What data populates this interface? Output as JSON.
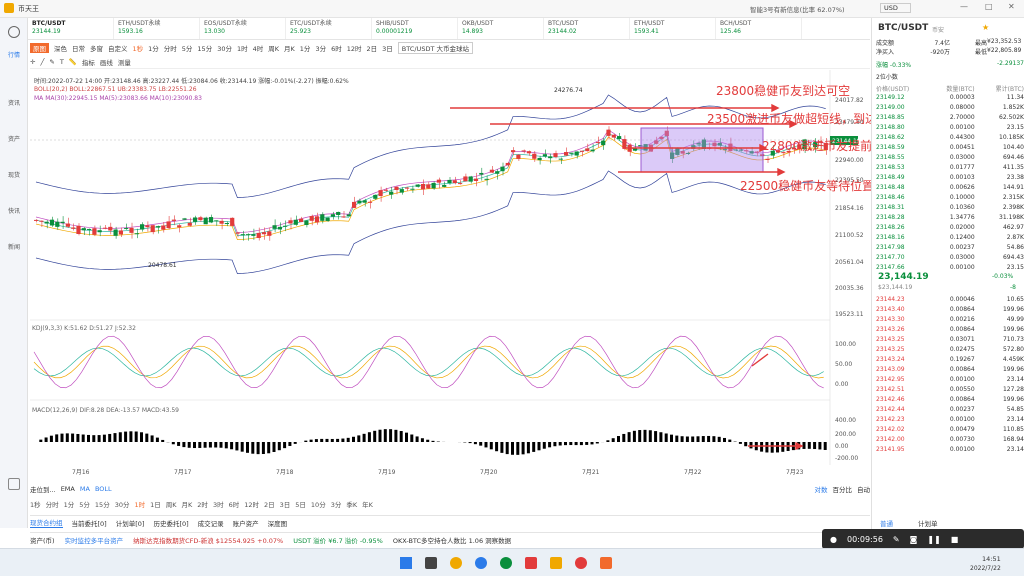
{
  "app": {
    "title": "币天王",
    "right_info": "智能3号有新信息(比率 62.07%)",
    "currency": "USD"
  },
  "tabs": [
    {
      "name": "BTC/USDT",
      "price": "23144.19"
    },
    {
      "name": "ETH/USDT永续",
      "price": "1593.16"
    },
    {
      "name": "EOS/USDT永续",
      "price": "13.030"
    },
    {
      "name": "ETC/USDT永续",
      "price": "25.923"
    },
    {
      "name": "SHIB/USDT",
      "price": "0.00001219"
    },
    {
      "name": "OKB/USDT",
      "price": "14.893"
    },
    {
      "name": "BTC/USDT",
      "price": "23144.02"
    },
    {
      "name": "ETH/USDT",
      "price": "1593.41"
    },
    {
      "name": "BCH/USDT",
      "price": "125.46"
    }
  ],
  "leftnav": [
    "行情",
    "资讯",
    "资产",
    "现货",
    "快讯",
    "新闻"
  ],
  "toolbar1": [
    "原图",
    "深色",
    "日常",
    "多窗",
    "自定义",
    "1秒",
    "1分",
    "分时",
    "5分",
    "15分",
    "30分",
    "1时",
    "4时",
    "周K",
    "月K",
    "1分",
    "3分",
    "6时",
    "12时",
    "2日",
    "3日",
    "BTC/USDT 大币金球站"
  ],
  "toolbar2": [
    "指标",
    "画线",
    "测量"
  ],
  "info": {
    "line1": "时间:2022-07-22 14:00  开:23148.46  高:23227.44  低:23084.06  收:23144.19  涨幅:-0.01%(-2.27)  振幅:0.62%",
    "line2": "BOLL(20,2)  BOLL:22867.51  UB:23383.75  LB:22551.26",
    "line3": "MA  MA(30):22945.15  MA(5):23083.66  MA(10):23090.83"
  },
  "annotations": {
    "a1": "23800稳健币友到达可空",
    "a2": "23500激进币友做超短线，到达空一次",
    "a3": "22800激进币友提前进场",
    "a4": "22500稳健币友等待位置"
  },
  "chart_data": {
    "type": "candlestick",
    "price_axis": [
      "24017.82",
      "23479.80",
      "22940.00",
      "22395.50",
      "21854.16",
      "21100.52",
      "20561.04",
      "20035.36",
      "19523.11"
    ],
    "high_label": "24276.74",
    "low_label": "20478.61",
    "current": "23144.19",
    "x_labels": [
      "7月16",
      "7月17",
      "7月18",
      "7月19",
      "7月20",
      "7月21",
      "7月22",
      "7月23"
    ],
    "kdj_label": "KDJ(9,3,3)  K:51.62  D:51.27  J:52.32",
    "kdj_axis": [
      "100.00",
      "50.00",
      "0.00"
    ],
    "macd_label": "MACD(12,26,9)  DIF:8.28  DEA:-13.57  MACD:43.59",
    "macd_axis": [
      "400.00",
      "200.00",
      "0.00",
      "-200.00"
    ]
  },
  "toolbar3": [
    "走位到...",
    "EMA",
    "MA",
    "BOLL"
  ],
  "toolbar3_right": [
    "对数",
    "百分比",
    "自动"
  ],
  "toolbar4": [
    "1秒",
    "分时",
    "1分",
    "5分",
    "15分",
    "30分",
    "1时",
    "1日",
    "周K",
    "月K",
    "2时",
    "3时",
    "6时",
    "12时",
    "2日",
    "3日",
    "5日",
    "10分",
    "3分",
    "季K",
    "年K"
  ],
  "bottom_tabs": [
    "现货合约组",
    "当前委托[0]",
    "计划单[0]",
    "历史委托[0]",
    "成交记录",
    "账户资产",
    "深度图"
  ],
  "ticker": {
    "t1": "资产(币)",
    "t2": "实时监控多平台资产",
    "t3": "纳斯达克指数期货CFD-新浪 $12554.925 +0.07%",
    "t4": "USDT 溢价 ¥6.7 溢价 -0.95%",
    "t5": "OKX-BTC多空持仓人数比 1.06 洞察数据"
  },
  "right": {
    "pair": "BTC/USDT",
    "sub": "币安",
    "stats": [
      [
        "成交额",
        "7.4亿",
        "最高",
        "¥23,352.53"
      ],
      [
        "净买入",
        "-920万",
        "最低",
        "¥22,805.89"
      ]
    ],
    "change": "涨幅 -0.33%",
    "changeval": "-2.29137",
    "precision": "2位小数",
    "headers": [
      "价格(USDT)",
      "数量(BTC)",
      "累计(BTC)"
    ],
    "asks": [
      [
        "23149.12",
        "0.00003",
        "11.34"
      ],
      [
        "23149.00",
        "0.08000",
        "1.852K"
      ],
      [
        "23148.85",
        "2.70000",
        "62.502K"
      ],
      [
        "23148.80",
        "0.00100",
        "23.15"
      ],
      [
        "23148.62",
        "0.44300",
        "10.185K"
      ],
      [
        "23148.59",
        "0.00451",
        "104.40"
      ],
      [
        "23148.55",
        "0.03000",
        "694.46"
      ],
      [
        "23148.53",
        "0.01777",
        "411.35"
      ],
      [
        "23148.49",
        "0.00103",
        "23.38"
      ],
      [
        "23148.48",
        "0.00626",
        "144.91"
      ],
      [
        "23148.46",
        "0.10000",
        "2.315K"
      ],
      [
        "23148.31",
        "0.10360",
        "2.398K"
      ],
      [
        "23148.28",
        "1.34776",
        "31.198K"
      ],
      [
        "23148.26",
        "0.02000",
        "462.97"
      ],
      [
        "23148.16",
        "0.12400",
        "2.87K"
      ],
      [
        "23147.98",
        "0.00237",
        "54.86"
      ],
      [
        "23147.70",
        "0.03000",
        "694.43"
      ],
      [
        "23147.66",
        "0.00100",
        "23.15"
      ]
    ],
    "last": "23,144.19",
    "last_pct": "-0.03%",
    "last_sub": "$23,144.19",
    "last_chg": "-8",
    "bids": [
      [
        "23144.23",
        "0.00046",
        "10.65"
      ],
      [
        "23143.40",
        "0.00864",
        "199.96"
      ],
      [
        "23143.30",
        "0.00216",
        "49.99"
      ],
      [
        "23143.26",
        "0.00864",
        "199.96"
      ],
      [
        "23143.25",
        "0.03071",
        "710.73"
      ],
      [
        "23143.25",
        "0.02475",
        "572.80"
      ],
      [
        "23143.24",
        "0.19267",
        "4.459K"
      ],
      [
        "23143.09",
        "0.00864",
        "199.96"
      ],
      [
        "23142.95",
        "0.00100",
        "23.14"
      ],
      [
        "23142.51",
        "0.00550",
        "127.28"
      ],
      [
        "23142.46",
        "0.00864",
        "199.96"
      ],
      [
        "23142.44",
        "0.00237",
        "54.85"
      ],
      [
        "23142.23",
        "0.00100",
        "23.14"
      ],
      [
        "23142.02",
        "0.00479",
        "110.85"
      ],
      [
        "23142.00",
        "0.00730",
        "168.94"
      ],
      [
        "23141.95",
        "0.00100",
        "23.14"
      ]
    ],
    "bottom_tabs": [
      "普通",
      "计划单"
    ]
  },
  "overlay": {
    "time": "00:09:56"
  },
  "clock": {
    "time": "14:51",
    "date": "2022/7/22"
  }
}
